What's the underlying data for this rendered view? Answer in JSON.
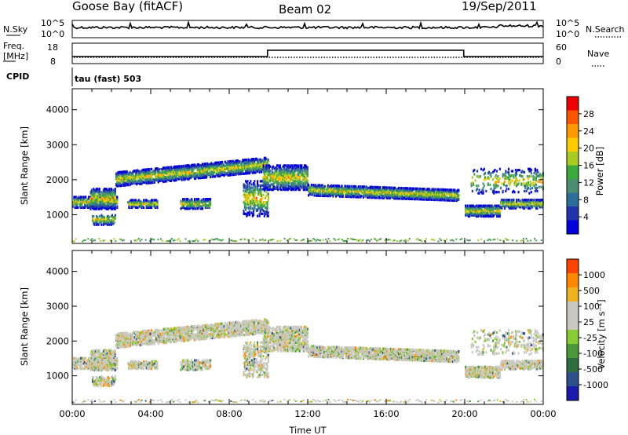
{
  "header": {
    "station": "Goose Bay (fitACF)",
    "beam": "Beam 02",
    "date": "19/Sep/2011"
  },
  "top_panels": {
    "nsky_label": "N.Sky",
    "nsky_ticks": [
      "10^5",
      "10^0"
    ],
    "nsearch_label": "N.Search",
    "nsearch_ticks": [
      "10^5",
      "10^0"
    ],
    "freq_label_1": "Freq.",
    "freq_label_2": "[MHz]",
    "freq_ticks": [
      "18",
      "8"
    ],
    "nave_label": "Nave",
    "nave_ticks": [
      "60",
      "0"
    ],
    "cpid_label": "CPID",
    "mode_label": "tau (fast) 503"
  },
  "colors": {
    "power": [
      "#0000dd",
      "#2233aa",
      "#2e6e9a",
      "#4a9070",
      "#3aaa3a",
      "#aacc22",
      "#ffcc00",
      "#ff9900",
      "#ff5500",
      "#ee0000"
    ],
    "velocity": [
      "#1a1aaa",
      "#2e4f8e",
      "#2e6e3e",
      "#4a9a3a",
      "#88cc33",
      "#c8c8c0",
      "#c8c8c0",
      "#f0b020",
      "#ff8800",
      "#ff4400",
      "#ee0000"
    ]
  },
  "chart_data": [
    {
      "type": "heatmap",
      "name": "power",
      "ylabel": "Slant Range [km]",
      "xlabel": "",
      "x_range_hours": [
        0,
        24
      ],
      "ylim": [
        180,
        4600
      ],
      "y_ticks": [
        1000,
        2000,
        3000,
        4000
      ],
      "colorbar_label": "Power [dB]",
      "colorbar_ticks": [
        "4",
        "8",
        "12",
        "16",
        "20",
        "24",
        "28"
      ]
    },
    {
      "type": "heatmap",
      "name": "velocity",
      "ylabel": "Slant Range [km]",
      "xlabel": "Time UT",
      "x_range_hours": [
        0,
        24
      ],
      "ylim": [
        180,
        4600
      ],
      "y_ticks": [
        1000,
        2000,
        3000,
        4000
      ],
      "x_ticks": [
        "00:00",
        "04:00",
        "08:00",
        "12:00",
        "16:00",
        "20:00",
        "00:00"
      ],
      "colorbar_label": "Velocity [m s⁻¹]",
      "colorbar_ticks": [
        "-1000",
        "-500",
        "-100",
        "-25",
        "25",
        "100",
        "500",
        "1000"
      ]
    }
  ]
}
